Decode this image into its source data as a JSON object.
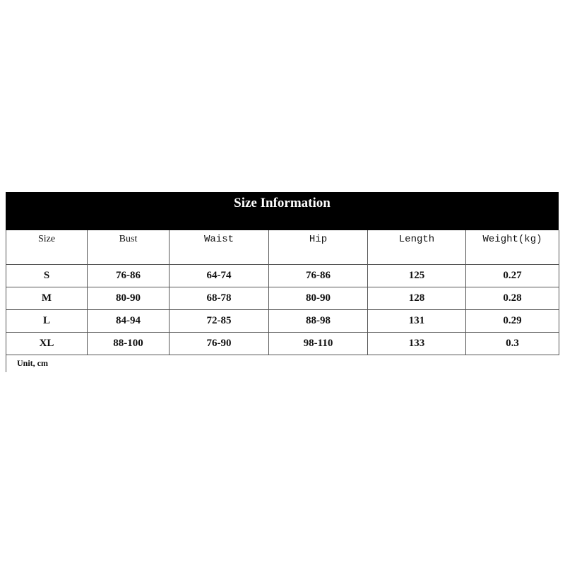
{
  "title": "Size Information",
  "columns": [
    "Size",
    "Bust",
    "Waist",
    "Hip",
    "Length",
    "Weight(kg)"
  ],
  "rows": [
    [
      "S",
      "76-86",
      "64-74",
      "76-86",
      "125",
      "0.27"
    ],
    [
      "M",
      "80-90",
      "68-78",
      "80-90",
      "128",
      "0.28"
    ],
    [
      "L",
      "84-94",
      "72-85",
      "88-98",
      "131",
      "0.29"
    ],
    [
      "XL",
      "88-100",
      "76-90",
      "98-110",
      "133",
      "0.3"
    ]
  ],
  "note": "Unit, cm"
}
